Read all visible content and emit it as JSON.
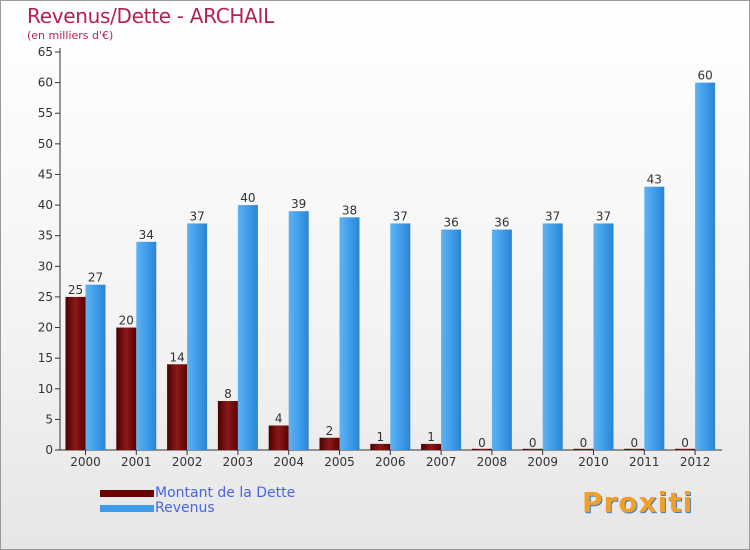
{
  "title": "Revenus/Dette - ARCHAIL",
  "subtitle": "(en milliers d'€)",
  "logo_text": "Proxiti",
  "colors": {
    "dette": "#6b0000",
    "revenus": "#3d9be9",
    "title": "#b5224e",
    "legend_text": "#4a63e0"
  },
  "legend": {
    "dette_label": "Montant de la Dette",
    "revenus_label": "Revenus"
  },
  "chart_data": {
    "type": "bar",
    "title": "Revenus/Dette - ARCHAIL",
    "ylabel": "(en milliers d'€)",
    "xlabel": "",
    "categories": [
      "2000",
      "2001",
      "2002",
      "2003",
      "2004",
      "2005",
      "2006",
      "2007",
      "2008",
      "2009",
      "2010",
      "2011",
      "2012"
    ],
    "series": [
      {
        "name": "Montant de la Dette",
        "values": [
          25,
          20,
          14,
          8,
          4,
          2,
          1,
          1,
          0,
          0,
          0,
          0,
          0
        ]
      },
      {
        "name": "Revenus",
        "values": [
          27,
          34,
          37,
          40,
          39,
          38,
          37,
          36,
          36,
          37,
          37,
          43,
          60
        ]
      }
    ],
    "ylim": [
      0,
      65
    ],
    "yticks": [
      0,
      5,
      10,
      15,
      20,
      25,
      30,
      35,
      40,
      45,
      50,
      55,
      60,
      65
    ],
    "grid": false,
    "legend_position": "bottom-left"
  }
}
